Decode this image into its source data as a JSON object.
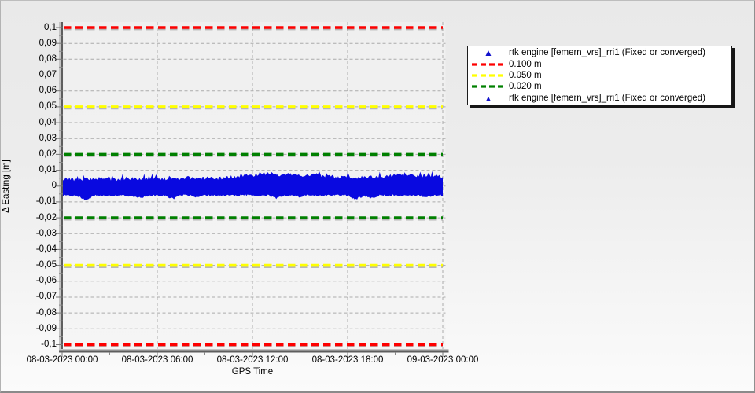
{
  "chart_data": {
    "type": "line",
    "title": "",
    "xlabel": "GPS Time",
    "ylabel": "Δ Easting [m]",
    "xlim_hours": [
      0,
      24
    ],
    "ylim": [
      -0.1035,
      0.1035
    ],
    "grid": {
      "visible": true,
      "h_step": 0.01,
      "v_gridline_hours": [
        6,
        12,
        18,
        24
      ],
      "color": "#ababab"
    },
    "x_ticks": [
      {
        "hour": 0,
        "label": "08-03-2023 00:00"
      },
      {
        "hour": 6,
        "label": "08-03-2023 06:00"
      },
      {
        "hour": 12,
        "label": "08-03-2023 12:00"
      },
      {
        "hour": 18,
        "label": "08-03-2023 18:00"
      },
      {
        "hour": 24,
        "label": "09-03-2023 00:00"
      }
    ],
    "x_minor_tick_hours": [
      3,
      9,
      15,
      21
    ],
    "y_ticks": [
      {
        "v": 0.1,
        "label": "0,1"
      },
      {
        "v": 0.09,
        "label": "0,09"
      },
      {
        "v": 0.08,
        "label": "0,08"
      },
      {
        "v": 0.07,
        "label": "0,07"
      },
      {
        "v": 0.06,
        "label": "0,06"
      },
      {
        "v": 0.05,
        "label": "0,05"
      },
      {
        "v": 0.04,
        "label": "0,04"
      },
      {
        "v": 0.03,
        "label": "0,03"
      },
      {
        "v": 0.02,
        "label": "0,02"
      },
      {
        "v": 0.01,
        "label": "0,01"
      },
      {
        "v": 0,
        "label": "0"
      },
      {
        "v": -0.01,
        "label": "-0,01"
      },
      {
        "v": -0.02,
        "label": "-0,02"
      },
      {
        "v": -0.03,
        "label": "-0,03"
      },
      {
        "v": -0.04,
        "label": "-0,04"
      },
      {
        "v": -0.05,
        "label": "-0,05"
      },
      {
        "v": -0.06,
        "label": "-0,06"
      },
      {
        "v": -0.07,
        "label": "-0,07"
      },
      {
        "v": -0.08,
        "label": "-0,08"
      },
      {
        "v": -0.09,
        "label": "-0,09"
      },
      {
        "v": -0.1,
        "label": "-0,1"
      }
    ],
    "thresholds": [
      {
        "label": "0.100 m",
        "value": 0.1,
        "color": "#fe0000"
      },
      {
        "label": "0.050 m",
        "value": 0.05,
        "color": "#ffff00"
      },
      {
        "label": "0.020 m",
        "value": 0.02,
        "color": "#008000"
      }
    ],
    "series": {
      "name": "rtk engine [femern_vrs]_rri1 (Fixed or converged)",
      "color": "#0909e0",
      "marker": "triangle",
      "hours": [
        0,
        0.5,
        1,
        1.5,
        2,
        2.5,
        3,
        3.5,
        4,
        4.5,
        5,
        5.5,
        6,
        6.5,
        7,
        7.5,
        8,
        8.5,
        9,
        9.5,
        10,
        10.5,
        11,
        11.5,
        12,
        12.5,
        13,
        13.5,
        14,
        14.5,
        15,
        15.5,
        16,
        16.5,
        17,
        17.5,
        18,
        18.5,
        19,
        19.5,
        20,
        20.5,
        21,
        21.5,
        22,
        22.5,
        23,
        23.5,
        24
      ],
      "upper_envelope_m": [
        0.0042,
        0.0045,
        0.004,
        0.0048,
        0.0044,
        0.005,
        0.0046,
        0.0043,
        0.005,
        0.0046,
        0.0044,
        0.0052,
        0.0048,
        0.0045,
        0.0051,
        0.0047,
        0.0053,
        0.0049,
        0.0046,
        0.0052,
        0.0048,
        0.0055,
        0.0062,
        0.0068,
        0.0065,
        0.0072,
        0.008,
        0.0074,
        0.0068,
        0.0075,
        0.007,
        0.0065,
        0.0072,
        0.0066,
        0.006,
        0.0055,
        0.0058,
        0.0052,
        0.0056,
        0.006,
        0.0055,
        0.0062,
        0.0068,
        0.0075,
        0.0068,
        0.0063,
        0.007,
        0.0064,
        0.0055
      ],
      "lower_envelope_m": [
        -0.0058,
        -0.006,
        -0.0062,
        -0.0092,
        -0.0062,
        -0.0058,
        -0.0064,
        -0.006,
        -0.0058,
        -0.0066,
        -0.0074,
        -0.006,
        -0.0058,
        -0.0062,
        -0.008,
        -0.006,
        -0.0058,
        -0.0068,
        -0.006,
        -0.0058,
        -0.0062,
        -0.0058,
        -0.006,
        -0.0056,
        -0.0058,
        -0.0062,
        -0.0058,
        -0.0078,
        -0.006,
        -0.0058,
        -0.0068,
        -0.0058,
        -0.006,
        -0.0062,
        -0.0058,
        -0.0056,
        -0.006,
        -0.0084,
        -0.0062,
        -0.0078,
        -0.0058,
        -0.006,
        -0.0056,
        -0.0062,
        -0.0058,
        -0.006,
        -0.0068,
        -0.006,
        -0.0058
      ]
    },
    "legend": {
      "position": "right-top",
      "items": [
        {
          "marker": "triangle",
          "size": "large",
          "color": "#1111cc",
          "label": "rtk engine [femern_vrs]_rri1 (Fixed or converged)"
        },
        {
          "marker": "dash",
          "color": "#fe0000",
          "label": "0.100 m"
        },
        {
          "marker": "dash",
          "color": "#ffff00",
          "label": "0.050 m"
        },
        {
          "marker": "dash",
          "color": "#008000",
          "label": "0.020 m"
        },
        {
          "marker": "triangle",
          "size": "small",
          "color": "#1111cc",
          "label": "rtk engine [femern_vrs]_rri1 (Fixed or converged)"
        }
      ]
    }
  }
}
